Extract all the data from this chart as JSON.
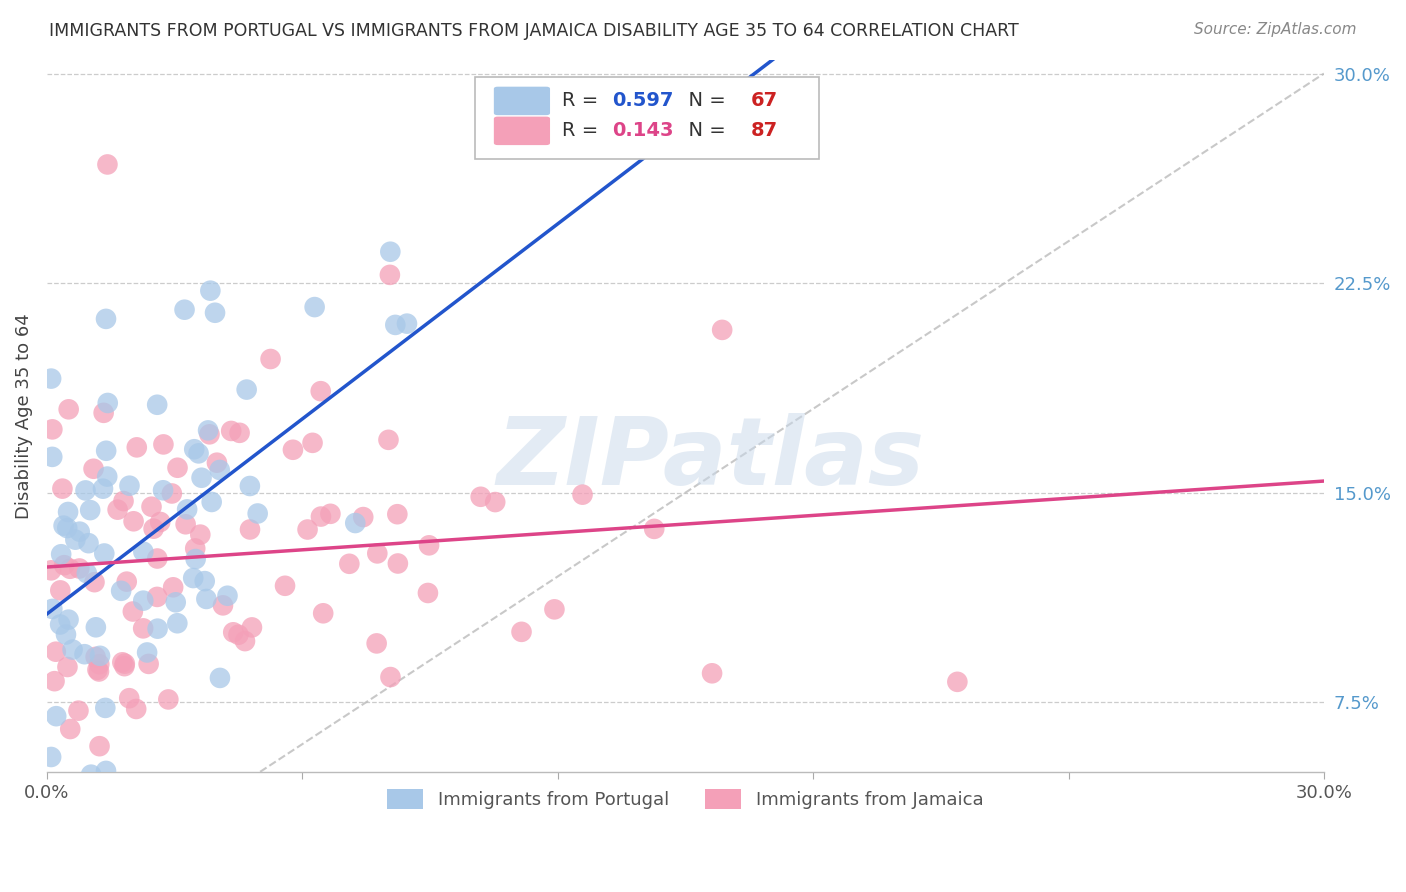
{
  "title": "IMMIGRANTS FROM PORTUGAL VS IMMIGRANTS FROM JAMAICA DISABILITY AGE 35 TO 64 CORRELATION CHART",
  "source": "Source: ZipAtlas.com",
  "ylabel": "Disability Age 35 to 64",
  "xlim": [
    0.0,
    0.3
  ],
  "ylim": [
    0.05,
    0.305
  ],
  "right_ytick_vals": [
    0.075,
    0.15,
    0.225,
    0.3
  ],
  "right_yticklabels": [
    "7.5%",
    "15.0%",
    "22.5%",
    "30.0%"
  ],
  "xtick_positions": [
    0.0,
    0.06,
    0.12,
    0.18,
    0.24,
    0.3
  ],
  "xticklabels": [
    "0.0%",
    "",
    "",
    "",
    "",
    "30.0%"
  ],
  "R_portugal": 0.597,
  "N_portugal": 67,
  "R_jamaica": 0.143,
  "N_jamaica": 87,
  "color_portugal": "#a8c8e8",
  "color_jamaica": "#f4a0b8",
  "line_color_portugal": "#2255cc",
  "line_color_jamaica": "#dd4488",
  "line_color_diagonal": "#bbbbbb",
  "background_color": "#ffffff",
  "grid_color": "#cccccc",
  "title_color": "#333333",
  "right_tick_color": "#5599cc",
  "watermark": "ZIPatlas",
  "legend_label_portugal": "Immigrants from Portugal",
  "legend_label_jamaica": "Immigrants from Jamaica",
  "legend_R_color_portugal": "#2255cc",
  "legend_R_color_jamaica": "#dd4488",
  "legend_N_color": "#cc2222",
  "seed": 12345
}
